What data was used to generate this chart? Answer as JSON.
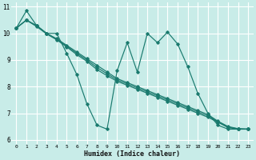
{
  "xlabel": "Humidex (Indice chaleur)",
  "bg_color": "#c8ece8",
  "grid_color": "#ffffff",
  "line_color": "#1a7a6e",
  "xlim": [
    -0.5,
    23.5
  ],
  "ylim": [
    5.85,
    11.15
  ],
  "xticks": [
    0,
    1,
    2,
    3,
    4,
    5,
    6,
    7,
    8,
    9,
    10,
    11,
    12,
    13,
    14,
    15,
    16,
    17,
    18,
    19,
    20,
    21,
    22,
    23
  ],
  "yticks": [
    6,
    7,
    8,
    9,
    10,
    11
  ],
  "line_zigzag": [
    10.2,
    10.85,
    10.3,
    10.0,
    10.0,
    9.25,
    8.45,
    7.35,
    6.55,
    6.4,
    8.6,
    9.65,
    8.55,
    10.0,
    9.65,
    10.05,
    9.6,
    8.75,
    7.75,
    7.0,
    6.55,
    6.4,
    6.4,
    6.4
  ],
  "line_straight1": [
    10.2,
    10.5,
    10.3,
    10.0,
    9.8,
    9.55,
    9.3,
    9.05,
    8.8,
    8.55,
    8.3,
    8.15,
    8.0,
    7.85,
    7.7,
    7.55,
    7.4,
    7.25,
    7.1,
    6.95,
    6.7,
    6.5,
    6.42,
    6.4
  ],
  "line_straight2": [
    10.2,
    10.5,
    10.28,
    10.0,
    9.78,
    9.52,
    9.25,
    9.0,
    8.72,
    8.48,
    8.25,
    8.1,
    7.95,
    7.8,
    7.65,
    7.5,
    7.35,
    7.2,
    7.05,
    6.9,
    6.68,
    6.48,
    6.41,
    6.4
  ],
  "line_straight3": [
    10.2,
    10.5,
    10.26,
    9.98,
    9.76,
    9.49,
    9.2,
    8.95,
    8.64,
    8.41,
    8.2,
    8.05,
    7.9,
    7.75,
    7.6,
    7.45,
    7.3,
    7.15,
    7.0,
    6.85,
    6.66,
    6.46,
    6.4,
    6.4
  ]
}
